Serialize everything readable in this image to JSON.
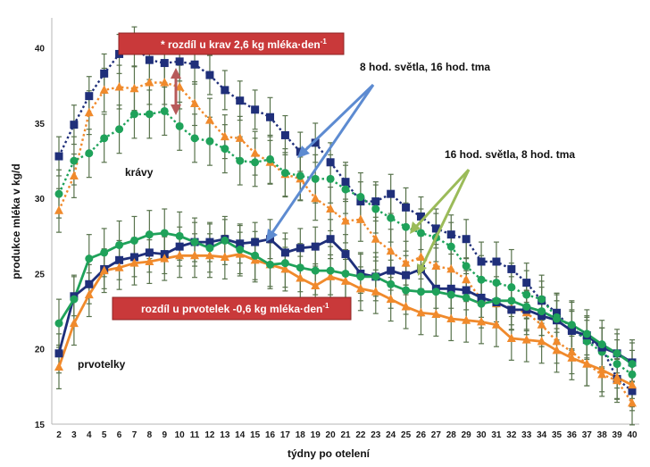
{
  "chart_data": {
    "type": "line",
    "xlabel": "týdny po otelení",
    "ylabel": "produkce mléka v kg/d",
    "xlim": [
      2,
      40
    ],
    "ylim": [
      15,
      42
    ],
    "yticks": [
      15,
      20,
      25,
      30,
      35,
      40
    ],
    "x": [
      2,
      3,
      4,
      5,
      6,
      7,
      8,
      9,
      10,
      11,
      12,
      13,
      14,
      15,
      16,
      17,
      18,
      19,
      20,
      21,
      22,
      23,
      24,
      25,
      26,
      27,
      28,
      29,
      30,
      31,
      32,
      33,
      34,
      35,
      36,
      37,
      38,
      39,
      40
    ],
    "grid": false,
    "series": [
      {
        "key": "krav_8h",
        "color": "#1f2f7a",
        "marker": "square",
        "dashed": true,
        "values": [
          32.8,
          34.9,
          36.8,
          38.3,
          39.6,
          40.1,
          39.2,
          39.0,
          39.1,
          38.9,
          38.2,
          37.2,
          36.5,
          35.9,
          35.4,
          34.2,
          33.1,
          33.7,
          32.4,
          31.1,
          29.8,
          29.8,
          30.3,
          29.4,
          28.8,
          28.0,
          27.6,
          27.3,
          25.8,
          25.8,
          25.3,
          24.4,
          23.2,
          22.4,
          21.3,
          20.6,
          20.1,
          18.0,
          17.2
        ]
      },
      {
        "key": "krav_16h",
        "color": "#f08a2c",
        "marker": "triangle",
        "dashed": true,
        "values": [
          29.2,
          31.5,
          35.7,
          37.2,
          37.4,
          37.3,
          37.7,
          37.7,
          37.4,
          36.3,
          35.2,
          34.1,
          34.0,
          33.0,
          32.4,
          31.6,
          31.3,
          30.0,
          29.3,
          28.5,
          28.6,
          27.3,
          26.5,
          25.7,
          26.1,
          25.5,
          25.3,
          24.6,
          23.3,
          23.0,
          22.7,
          22.4,
          21.6,
          20.5,
          19.8,
          19.0,
          18.3,
          17.9,
          16.4
        ]
      },
      {
        "key": "krav_16h_green",
        "color": "#1fa25a",
        "marker": "circle",
        "dashed": true,
        "values": [
          30.3,
          32.5,
          33.0,
          34.0,
          34.6,
          35.6,
          35.6,
          35.8,
          34.8,
          34.0,
          33.8,
          33.3,
          32.5,
          32.4,
          32.6,
          31.7,
          31.5,
          31.3,
          31.3,
          30.6,
          30.1,
          29.3,
          28.7,
          28.1,
          27.7,
          27.4,
          26.8,
          25.5,
          24.6,
          24.4,
          24.1,
          23.6,
          23.3,
          22.1,
          21.5,
          20.5,
          19.8,
          19.0,
          18.3
        ]
      },
      {
        "key": "prvot_8h",
        "color": "#1f2f7a",
        "marker": "square",
        "dashed": false,
        "values": [
          19.7,
          23.5,
          24.3,
          25.3,
          25.9,
          26.1,
          26.4,
          26.3,
          26.8,
          27.1,
          27.1,
          27.3,
          27.0,
          27.1,
          27.3,
          26.4,
          26.7,
          26.8,
          27.3,
          26.3,
          25.0,
          24.8,
          25.2,
          24.9,
          25.3,
          24.0,
          24.0,
          23.9,
          23.4,
          23.1,
          22.6,
          22.6,
          22.2,
          21.9,
          21.2,
          20.9,
          20.1,
          19.7,
          19.1
        ]
      },
      {
        "key": "prvot_16h",
        "color": "#f08a2c",
        "marker": "triangle",
        "dashed": false,
        "values": [
          18.8,
          21.7,
          23.6,
          25.2,
          25.4,
          25.7,
          25.8,
          26.0,
          26.2,
          26.2,
          26.2,
          26.1,
          26.3,
          25.9,
          25.6,
          25.3,
          24.7,
          24.2,
          24.8,
          24.5,
          24.0,
          23.8,
          23.3,
          22.8,
          22.4,
          22.3,
          22.0,
          21.9,
          21.8,
          21.6,
          20.7,
          20.6,
          20.5,
          19.9,
          19.4,
          19.0,
          18.6,
          18.1,
          17.6
        ]
      },
      {
        "key": "prvot_16h_green",
        "color": "#1fa25a",
        "marker": "circle",
        "dashed": false,
        "values": [
          21.7,
          23.3,
          26.0,
          26.4,
          26.9,
          27.2,
          27.6,
          27.7,
          27.5,
          27.1,
          26.7,
          27.2,
          26.6,
          26.2,
          25.6,
          25.7,
          25.4,
          25.2,
          25.2,
          25.0,
          24.8,
          24.8,
          24.3,
          23.9,
          23.8,
          23.8,
          23.6,
          23.4,
          23.0,
          23.2,
          23.2,
          22.8,
          22.5,
          22.0,
          21.6,
          21.0,
          20.3,
          19.7,
          19.0
        ]
      }
    ],
    "annotations": {
      "box_top": "* rozdíl u krav 2,6 kg mléka·den",
      "box_top_sup": "-1",
      "box_bottom": "rozdíl u prvotelek -0,6 kg mléka·den",
      "box_bottom_sup": "-1",
      "label_8h": "8 hod. světla, 16 hod. tma",
      "label_16h": "16 hod. světla, 8 hod. tma",
      "label_cows": "krávy",
      "label_heifers": "prvotelky"
    },
    "colors": {
      "box": "#c9393a",
      "arrow_blue": "#5d8bd1",
      "arrow_green": "#9bbb59",
      "arrow_red": "#b75a5a",
      "errorbar": "#58734c"
    }
  }
}
